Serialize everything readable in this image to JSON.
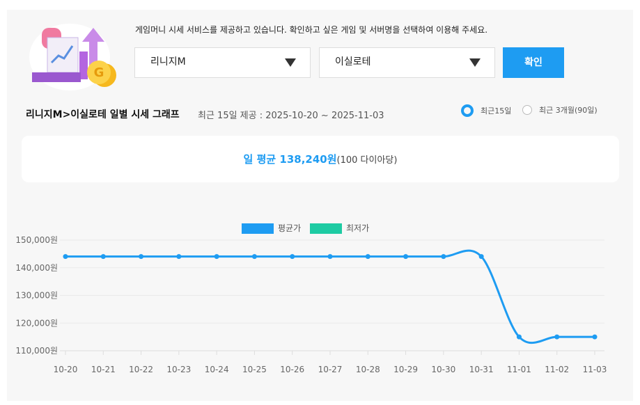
{
  "header": {
    "notice": "게임머니 시세 서비스를 제공하고 있습니다. 확인하고 싶은 게임 및 서버명을 선택하여 이용해 주세요.",
    "game": "리니지M",
    "server": "이실로테",
    "confirm": "확인"
  },
  "heading": {
    "title": "리니지M>이실로테 일별 시세 그래프",
    "subtitle": "최근 15일 제공 : 2025-10-20 ~ 2025-11-03"
  },
  "period": {
    "options": [
      "최근15일",
      "최근 3개월(90일)"
    ],
    "selected": 0
  },
  "summary": {
    "average": "일 평균 138,240원",
    "unit": "(100 다이아당)"
  },
  "chart_data": {
    "type": "line",
    "categories": [
      "10-20",
      "10-21",
      "10-22",
      "10-23",
      "10-24",
      "10-25",
      "10-26",
      "10-27",
      "10-28",
      "10-29",
      "10-30",
      "10-31",
      "11-01",
      "11-02",
      "11-03"
    ],
    "series": [
      {
        "name": "평균가",
        "color": "#1e9cf2",
        "values": [
          144050,
          144050,
          144050,
          144050,
          144050,
          144050,
          144050,
          144050,
          144050,
          144050,
          144050,
          144050,
          115000,
          115000,
          115000
        ]
      },
      {
        "name": "최저가",
        "color": "#1ecba3",
        "values": [
          null,
          null,
          null,
          null,
          null,
          null,
          null,
          null,
          null,
          null,
          null,
          null,
          null,
          null,
          null
        ]
      }
    ],
    "ylim": [
      110000,
      150000
    ],
    "yticks": [
      {
        "value": 110000,
        "label": "110,000원"
      },
      {
        "value": 120000,
        "label": "120,000원"
      },
      {
        "value": 130000,
        "label": "130,000원"
      },
      {
        "value": 140000,
        "label": "140,000원"
      },
      {
        "value": 150000,
        "label": "150,000원"
      }
    ],
    "grid": true,
    "legend": "top"
  }
}
